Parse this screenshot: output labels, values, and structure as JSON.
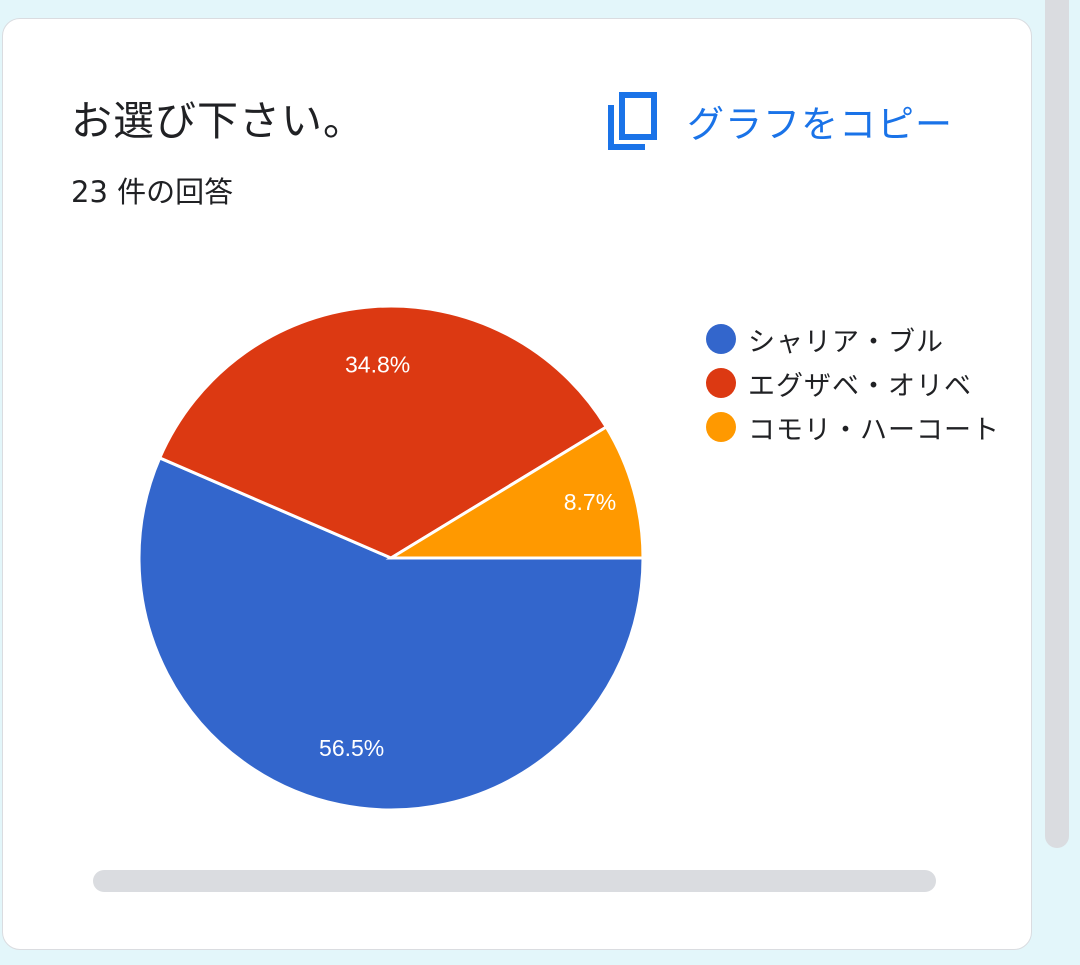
{
  "card": {
    "title": "お選び下さい。",
    "response_count": "23 件の回答",
    "copy_label": "グラフをコピー"
  },
  "colors": {
    "accent": "#1a73e8",
    "series": [
      "#3366cc",
      "#dc3912",
      "#ff9900"
    ]
  },
  "icons": {
    "copy": "copy-icon"
  },
  "chart_data": {
    "type": "pie",
    "title": "お選び下さい。",
    "legend_position": "right",
    "slices": [
      {
        "label": "シャリア・ブル",
        "value": 56.5,
        "display": "56.5%",
        "color": "#3366cc"
      },
      {
        "label": "エグザベ・オリベ",
        "value": 34.8,
        "display": "34.8%",
        "color": "#dc3912"
      },
      {
        "label": "コモリ・ハーコート",
        "value": 8.7,
        "display": "8.7%",
        "color": "#ff9900"
      }
    ]
  }
}
